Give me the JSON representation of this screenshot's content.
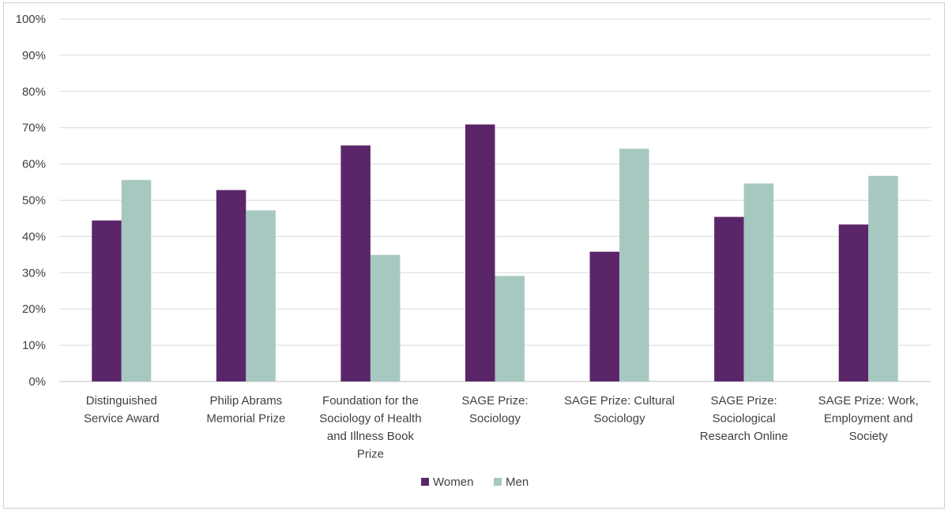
{
  "chart_data": {
    "type": "bar",
    "categories": [
      [
        "Distinguished",
        "Service Award"
      ],
      [
        "Philip Abrams",
        "Memorial Prize"
      ],
      [
        "Foundation for the",
        "Sociology of Health",
        "and Illness Book",
        "Prize"
      ],
      [
        "SAGE Prize:",
        "Sociology"
      ],
      [
        "SAGE Prize: Cultural",
        "Sociology"
      ],
      [
        "SAGE Prize:",
        "Sociological",
        "Research Online"
      ],
      [
        "SAGE Prize: Work,",
        "Employment and",
        "Society"
      ]
    ],
    "series": [
      {
        "name": "Women",
        "color": "#5b2669",
        "values": [
          44.4,
          52.8,
          65.1,
          70.9,
          35.8,
          45.4,
          43.3
        ]
      },
      {
        "name": "Men",
        "color": "#a6c8c0",
        "values": [
          55.6,
          47.2,
          34.9,
          29.1,
          64.2,
          54.6,
          56.7
        ]
      }
    ],
    "ylim": [
      0,
      100
    ],
    "yticks": [
      "0%",
      "10%",
      "20%",
      "30%",
      "40%",
      "50%",
      "60%",
      "70%",
      "80%",
      "90%",
      "100%"
    ],
    "grid": true,
    "legend_position": "bottom"
  }
}
